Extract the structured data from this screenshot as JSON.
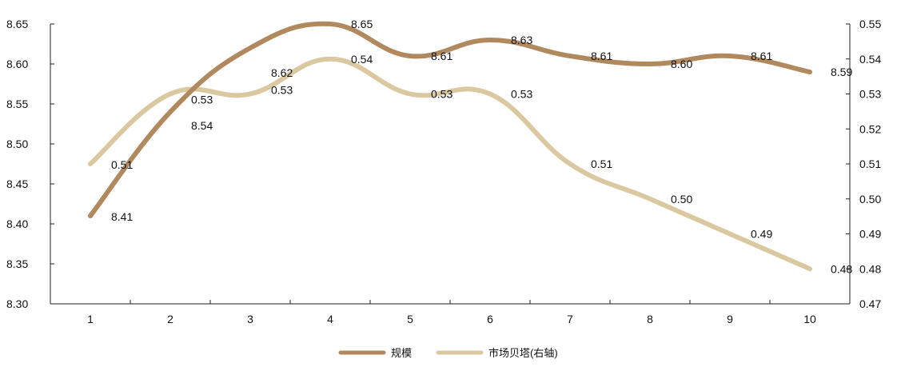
{
  "chart_data": {
    "type": "line",
    "categories": [
      "1",
      "2",
      "3",
      "4",
      "5",
      "6",
      "7",
      "8",
      "9",
      "10"
    ],
    "series": [
      {
        "name": "规模",
        "axis": "left",
        "color": "#b08a5e",
        "values": [
          8.41,
          8.54,
          8.62,
          8.65,
          8.61,
          8.63,
          8.61,
          8.6,
          8.61,
          8.59
        ],
        "labels": [
          "8.41",
          "8.54",
          "8.62",
          "8.65",
          "8.61",
          "8.63",
          "8.61",
          "8.60",
          "8.61",
          "8.59"
        ]
      },
      {
        "name": "市场贝塔(右轴)",
        "axis": "right",
        "color": "#d9c8a0",
        "values": [
          0.51,
          0.53,
          0.53,
          0.54,
          0.53,
          0.53,
          0.51,
          0.5,
          0.49,
          0.48
        ],
        "labels": [
          "0.51",
          "0.53",
          "0.53",
          "0.54",
          "0.53",
          "0.53",
          "0.51",
          "0.50",
          "0.49",
          "0.48"
        ]
      }
    ],
    "y_left": {
      "ylim": [
        8.3,
        8.65
      ],
      "ticks": [
        "8.30",
        "8.35",
        "8.40",
        "8.45",
        "8.50",
        "8.55",
        "8.60",
        "8.65"
      ]
    },
    "y_right": {
      "ylim": [
        0.47,
        0.55
      ],
      "ticks": [
        "0.47",
        "0.48",
        "0.49",
        "0.50",
        "0.51",
        "0.52",
        "0.53",
        "0.54",
        "0.55"
      ]
    },
    "grid": false,
    "legend_position": "bottom-center"
  }
}
